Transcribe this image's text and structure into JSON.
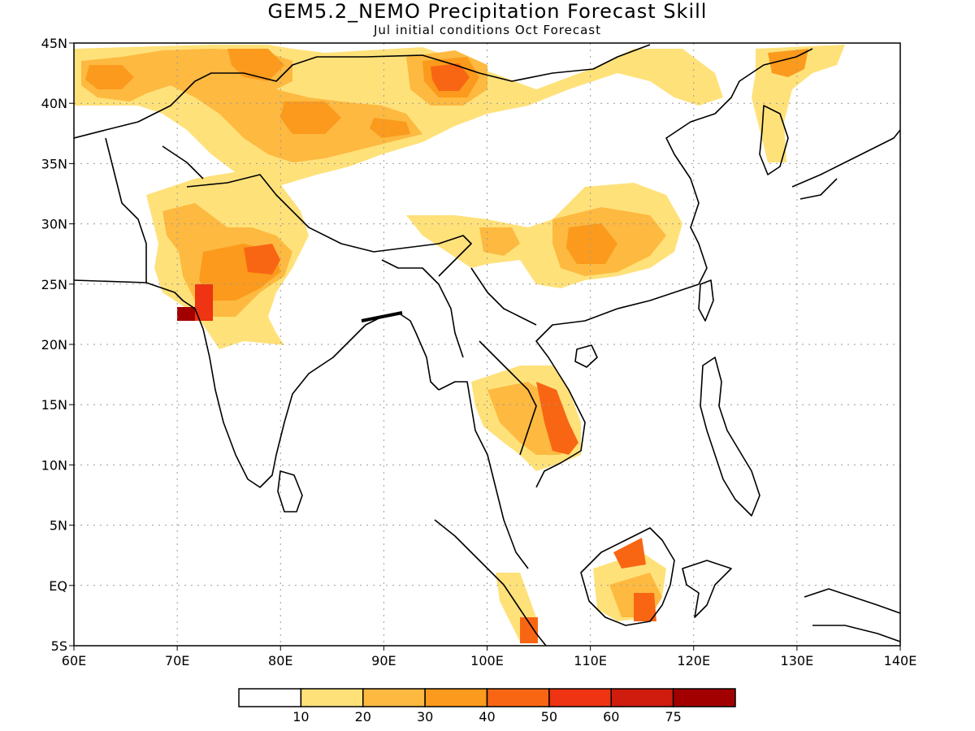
{
  "title": "GEM5.2_NEMO Precipitation Forecast Skill",
  "subtitle": "Jul initial conditions  Oct Forecast",
  "axes": {
    "lon_labels": [
      "60E",
      "70E",
      "80E",
      "90E",
      "100E",
      "110E",
      "120E",
      "130E",
      "140E"
    ],
    "lat_labels": [
      "45N",
      "40N",
      "35N",
      "30N",
      "25N",
      "20N",
      "15N",
      "10N",
      "5N",
      "EQ",
      "5S"
    ],
    "lon_range": [
      60,
      140
    ],
    "lat_range": [
      -5,
      45
    ],
    "gridlines": "dotted"
  },
  "colorbar": {
    "boundaries": [
      "10",
      "20",
      "30",
      "40",
      "50",
      "60",
      "75"
    ],
    "colors": [
      "#ffffff",
      "#ffe17a",
      "#fdb940",
      "#fb9a1c",
      "#f86614",
      "#ee3412",
      "#d01b0f",
      "#a20000"
    ]
  },
  "features": {
    "coastline_color": "#000000",
    "land_boundary_color": "#000000"
  }
}
